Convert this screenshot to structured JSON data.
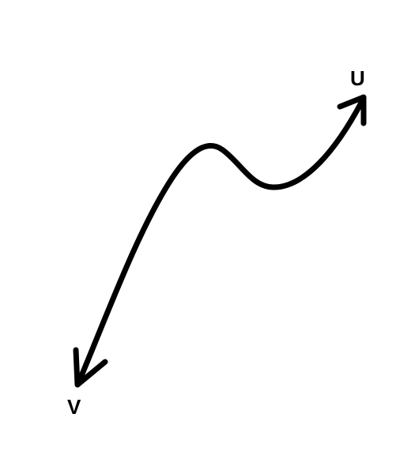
{
  "diagram": {
    "start_label": "U",
    "end_label": "V",
    "stroke_color": "#000000",
    "background_color": "#ffffff",
    "arrowheads": "both-ends"
  }
}
